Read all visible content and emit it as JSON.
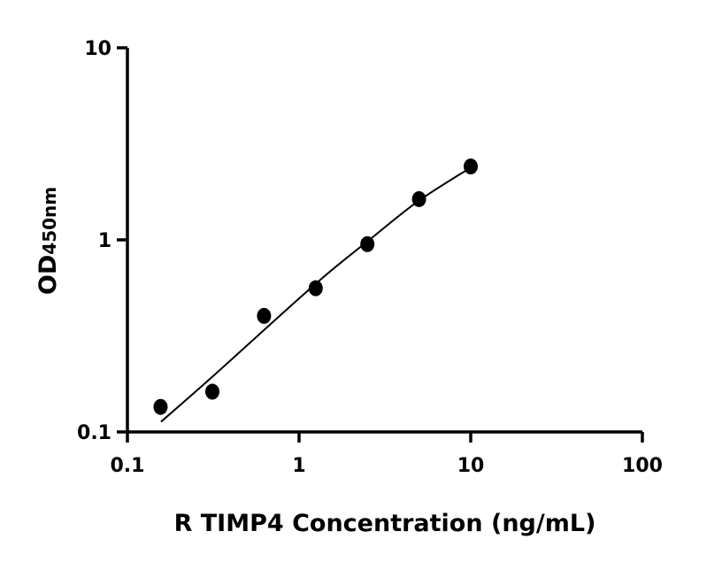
{
  "chart_data": {
    "type": "scatter",
    "title": "",
    "xlabel": "R TIMP4 Concentration (ng/mL)",
    "ylabel": "OD",
    "ylabel_subscript": "450nm",
    "x_scale": "log",
    "y_scale": "log",
    "xlim": [
      0.1,
      100
    ],
    "ylim": [
      0.1,
      10
    ],
    "x_ticks": [
      0.1,
      1,
      10,
      100
    ],
    "x_tick_labels": [
      "0.1",
      "1",
      "10",
      "100"
    ],
    "y_ticks": [
      0.1,
      1,
      10
    ],
    "y_tick_labels": [
      "0.1",
      "1",
      "10"
    ],
    "grid": false,
    "points": {
      "x": [
        0.156,
        0.3125,
        0.625,
        1.25,
        2.5,
        5,
        10
      ],
      "y": [
        0.135,
        0.162,
        0.402,
        0.56,
        0.95,
        1.63,
        2.41
      ]
    },
    "fit_curve": {
      "x": [
        0.157,
        0.311,
        1.245,
        2.64,
        4.94,
        10
      ],
      "y": [
        0.113,
        0.193,
        0.589,
        1.02,
        1.59,
        2.38
      ]
    },
    "colors": {
      "marker": "#000000",
      "line": "#000000",
      "axis": "#000000"
    }
  }
}
